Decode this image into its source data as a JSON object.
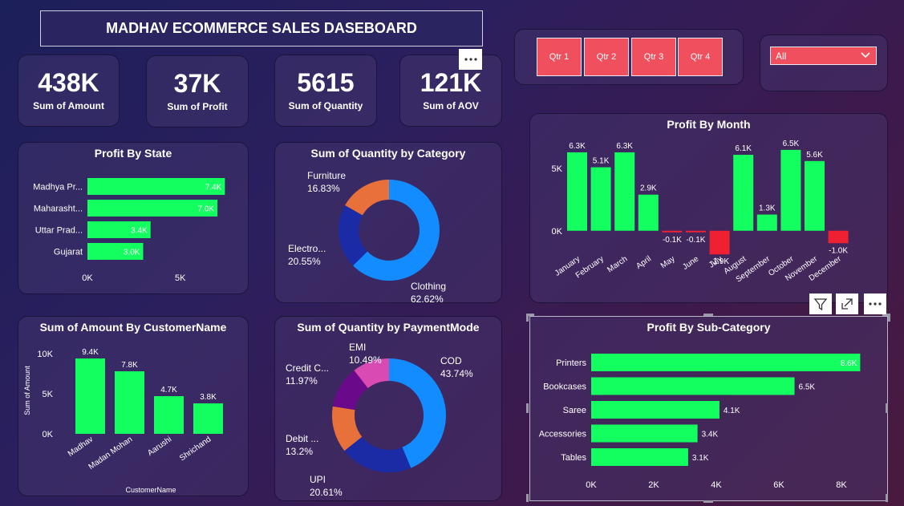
{
  "header": {
    "title": "MADHAV ECOMMERCE SALES DASEBOARD"
  },
  "kpis": [
    {
      "value": "438K",
      "label": "Sum of Amount"
    },
    {
      "value": "37K",
      "label": "Sum of Profit"
    },
    {
      "value": "5615",
      "label": "Sum of Quantity"
    },
    {
      "value": "121K",
      "label": "Sum of AOV"
    }
  ],
  "slicer": {
    "quarters": [
      "Qtr 1",
      "Qtr 2",
      "Qtr 3",
      "Qtr 4"
    ],
    "dropdown_value": "All"
  },
  "colors": {
    "green": "#12ff5f",
    "red": "#f02033",
    "clothing": "#138cff",
    "electronics": "#1b2ba6",
    "furniture": "#e8703a",
    "cod": "#138cff",
    "upi": "#1b2ba6",
    "debit": "#e8703a",
    "credit": "#6a0a8a",
    "emi": "#d94bb3"
  },
  "chart_data": [
    {
      "id": "profit-by-state",
      "type": "bar",
      "orientation": "horizontal",
      "title": "Profit By State",
      "categories": [
        "Madhya Pr...",
        "Maharasht...",
        "Uttar Prad...",
        "Gujarat"
      ],
      "values": [
        7400,
        7000,
        3400,
        3000
      ],
      "data_labels": [
        "7.4K",
        "7.0K",
        "3.4K",
        "3.0K"
      ],
      "xticks": [
        "0K",
        "5K"
      ],
      "xlim": [
        0,
        7600
      ]
    },
    {
      "id": "quantity-by-category",
      "type": "pie",
      "title": "Sum of Quantity by Category",
      "slices": [
        {
          "label": "Clothing",
          "percent": "62.62%",
          "value": 62.62
        },
        {
          "label": "Electro...",
          "percent": "20.55%",
          "value": 20.55
        },
        {
          "label": "Furniture",
          "percent": "16.83%",
          "value": 16.83
        }
      ]
    },
    {
      "id": "profit-by-month",
      "type": "bar",
      "title": "Profit By Month",
      "categories": [
        "January",
        "February",
        "March",
        "April",
        "May",
        "June",
        "July",
        "August",
        "September",
        "October",
        "November",
        "December"
      ],
      "values": [
        6300,
        5100,
        6300,
        2900,
        -100,
        -100,
        -1900,
        6100,
        1300,
        6500,
        5600,
        -1000
      ],
      "data_labels": [
        "6.3K",
        "5.1K",
        "6.3K",
        "2.9K",
        "-0.1K",
        "-0.1K",
        "-1.9K",
        "6.1K",
        "1.3K",
        "6.5K",
        "5.6K",
        "-1.0K"
      ],
      "yticks": [
        "5K",
        "0K"
      ],
      "ylim": [
        -2400,
        7200
      ]
    },
    {
      "id": "amount-by-customer",
      "type": "bar",
      "title": "Sum of Amount By CustomerName",
      "categories": [
        "Madhav",
        "Madan Mohan",
        "Aarushi",
        "Shrichand"
      ],
      "values": [
        9400,
        7800,
        4700,
        3800
      ],
      "data_labels": [
        "9.4K",
        "7.8K",
        "4.7K",
        "3.8K"
      ],
      "yticks": [
        "10K",
        "5K",
        "0K"
      ],
      "ylim": [
        0,
        10000
      ],
      "xlabel": "CustomerName",
      "ylabel": "Sum of Amount"
    },
    {
      "id": "quantity-by-paymentmode",
      "type": "pie",
      "title": "Sum of Quantity by PaymentMode",
      "slices": [
        {
          "label": "COD",
          "percent": "43.74%",
          "value": 43.74
        },
        {
          "label": "UPI",
          "percent": "20.61%",
          "value": 20.61
        },
        {
          "label": "Debit ...",
          "percent": "13.2%",
          "value": 13.2
        },
        {
          "label": "Credit C...",
          "percent": "11.97%",
          "value": 11.97
        },
        {
          "label": "EMI",
          "percent": "10.49%",
          "value": 10.49
        }
      ]
    },
    {
      "id": "profit-by-subcategory",
      "type": "bar",
      "orientation": "horizontal",
      "title": "Profit By Sub-Category",
      "categories": [
        "Printers",
        "Bookcases",
        "Saree",
        "Accessories",
        "Tables"
      ],
      "values": [
        8600,
        6500,
        4100,
        3400,
        3100
      ],
      "data_labels": [
        "8.6K",
        "6.5K",
        "4.1K",
        "3.4K",
        "3.1K"
      ],
      "xticks": [
        "0K",
        "2K",
        "4K",
        "6K",
        "8K"
      ],
      "xlim": [
        0,
        8000
      ]
    }
  ]
}
